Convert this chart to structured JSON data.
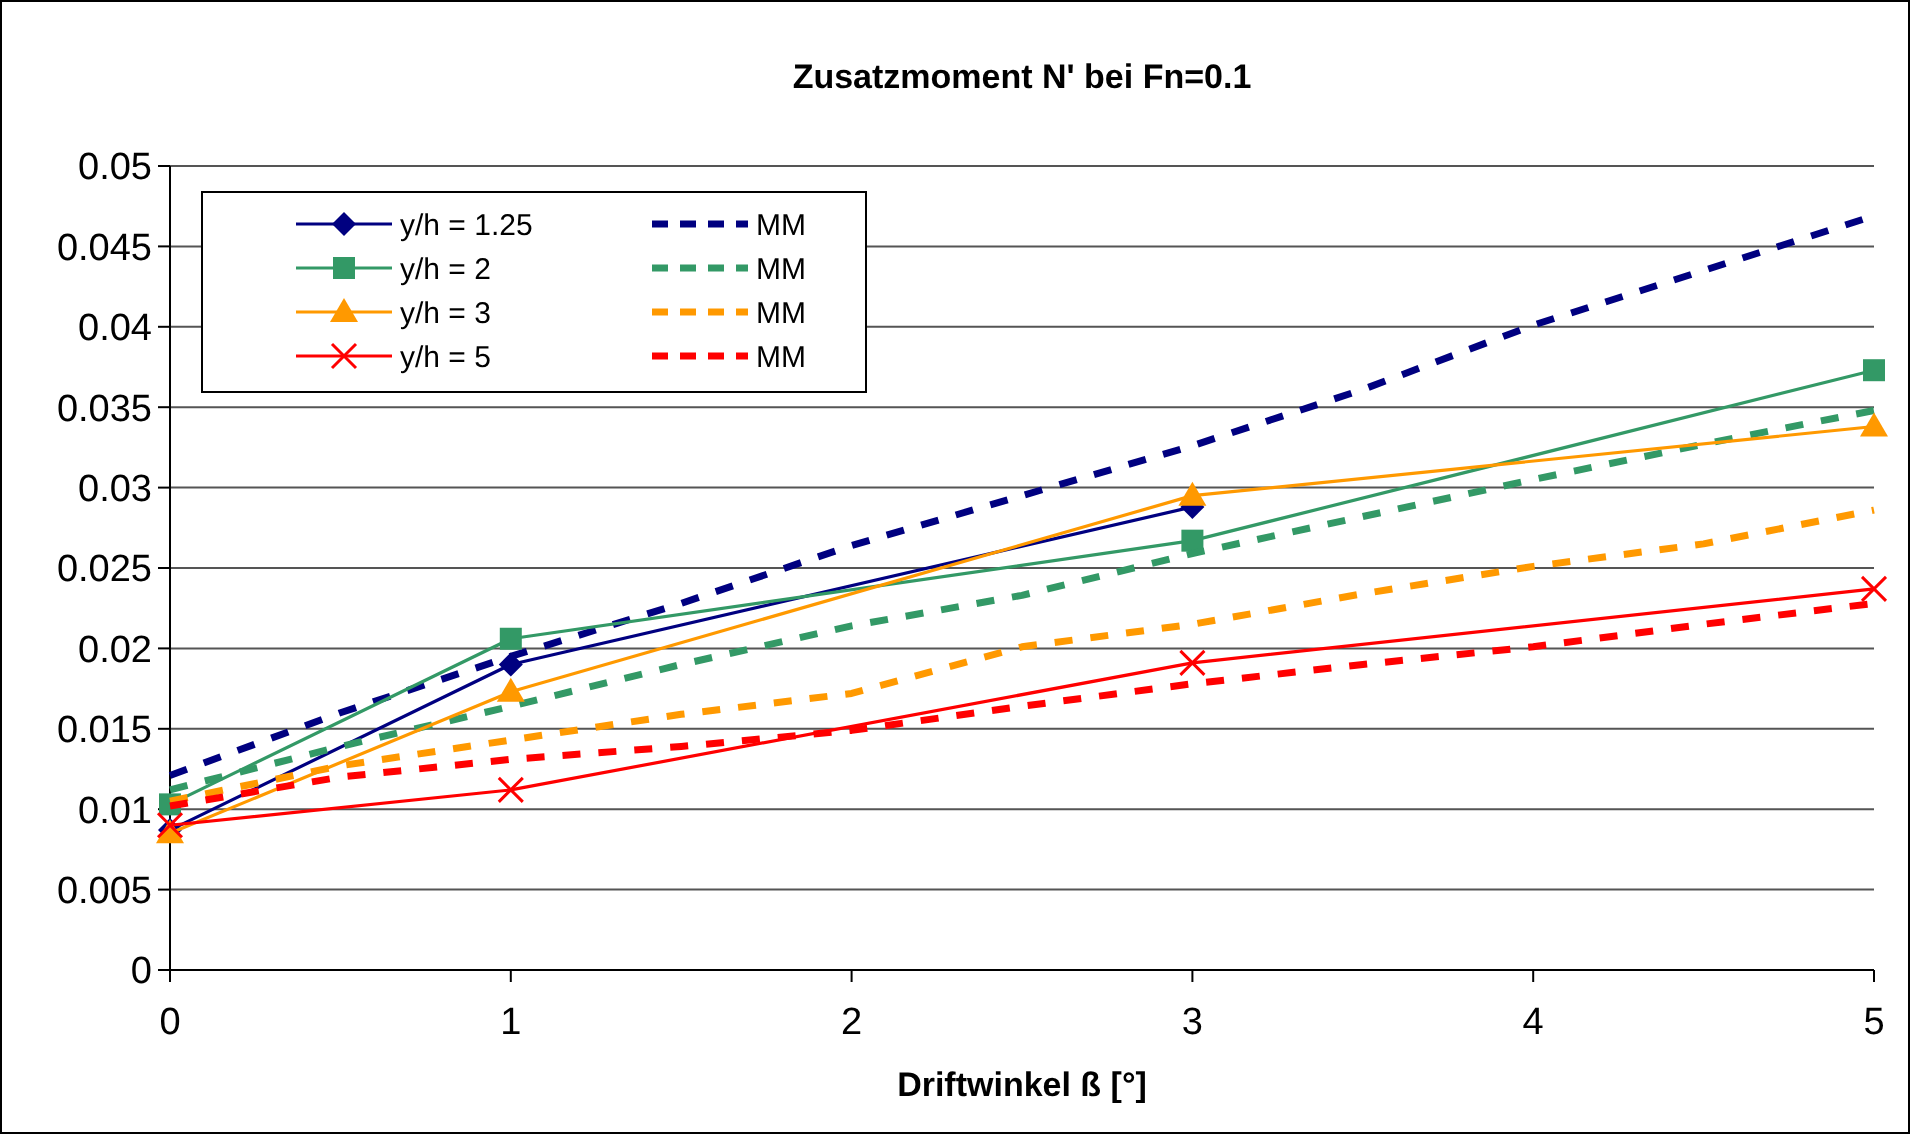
{
  "chart_data": {
    "type": "line",
    "title": "Zusatzmoment N' bei Fn=0.1",
    "xlabel": "Driftwinkel ß [°]",
    "xlim": [
      0,
      5
    ],
    "xticks": [
      0,
      1,
      2,
      3,
      4,
      5
    ],
    "ylim": [
      0,
      0.05
    ],
    "yticks": [
      0,
      0.005,
      0.01,
      0.015,
      0.02,
      0.025,
      0.03,
      0.035,
      0.04,
      0.045,
      0.05
    ],
    "grid": "y",
    "legend": "top left",
    "series": [
      {
        "name": "y/h = 1.25",
        "color": "#000080",
        "x": [
          0,
          1,
          3
        ],
        "values": [
          0.0087,
          0.019,
          0.0288
        ],
        "marker": "diamond",
        "line_style": "solid"
      },
      {
        "name": "MM",
        "color": "#000080",
        "x": [
          0,
          0.5,
          1,
          1.5,
          2,
          2.5,
          3,
          3.5,
          4,
          4.5,
          5
        ],
        "values": [
          0.0121,
          0.016,
          0.0195,
          0.0228,
          0.0264,
          0.0295,
          0.0326,
          0.0361,
          0.0401,
          0.0435,
          0.0469
        ],
        "marker": "none",
        "line_style": "dashed"
      },
      {
        "name": "y/h = 2",
        "color": "#339966",
        "x": [
          0,
          1,
          3,
          5
        ],
        "values": [
          0.0103,
          0.0206,
          0.0267,
          0.0373
        ],
        "marker": "square",
        "line_style": "solid"
      },
      {
        "name": "MM",
        "color": "#339966",
        "x": [
          0,
          0.5,
          1,
          1.5,
          2,
          2.5,
          3,
          3.5,
          4,
          4.5,
          5
        ],
        "values": [
          0.0112,
          0.0139,
          0.0164,
          0.019,
          0.0214,
          0.0233,
          0.0259,
          0.0282,
          0.0305,
          0.0327,
          0.0348
        ],
        "marker": "none",
        "line_style": "dashed"
      },
      {
        "name": "y/h = 3",
        "color": "#ff9900",
        "x": [
          0,
          1,
          3,
          5
        ],
        "values": [
          0.0085,
          0.0173,
          0.0295,
          0.0338
        ],
        "marker": "triangle",
        "line_style": "solid"
      },
      {
        "name": "MM",
        "color": "#ff9900",
        "x": [
          0,
          0.5,
          1,
          1.5,
          2,
          2.5,
          3,
          3.5,
          4,
          4.5,
          5
        ],
        "values": [
          0.0105,
          0.0127,
          0.0143,
          0.0159,
          0.0172,
          0.0201,
          0.0215,
          0.0234,
          0.0251,
          0.0265,
          0.0286
        ],
        "marker": "none",
        "line_style": "dashed"
      },
      {
        "name": "y/h = 5",
        "color": "#ff0000",
        "x": [
          0,
          1,
          3,
          5
        ],
        "values": [
          0.009,
          0.0112,
          0.0191,
          0.0237
        ],
        "marker": "cross",
        "line_style": "solid"
      },
      {
        "name": "MM",
        "color": "#ff0000",
        "x": [
          0,
          0.5,
          1,
          1.5,
          2,
          2.5,
          3,
          3.5,
          4,
          4.5,
          5
        ],
        "values": [
          0.0102,
          0.012,
          0.0131,
          0.0139,
          0.0149,
          0.0164,
          0.0178,
          0.019,
          0.0201,
          0.0215,
          0.0228
        ],
        "marker": "none",
        "line_style": "dashed"
      }
    ]
  }
}
